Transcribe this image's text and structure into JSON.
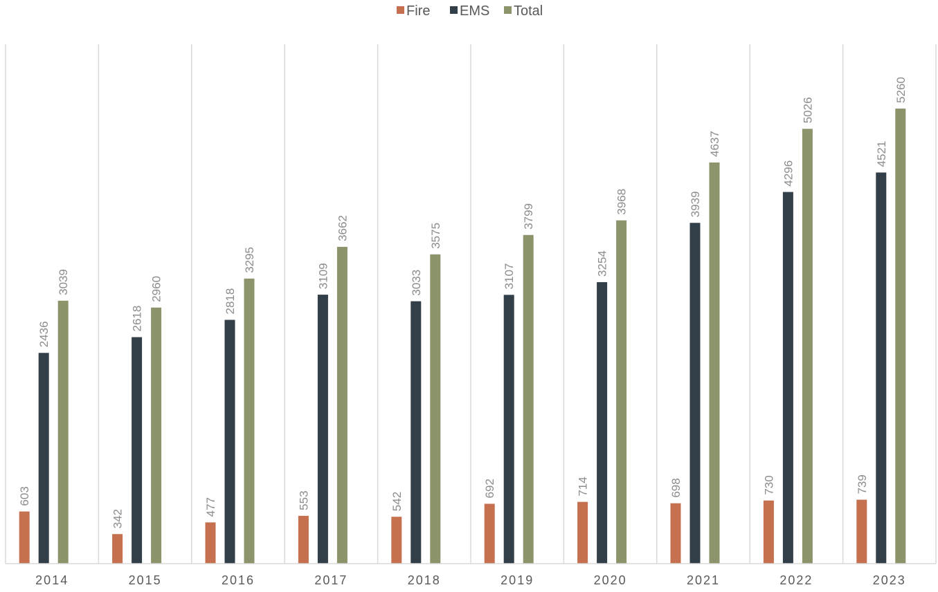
{
  "chart_data": {
    "type": "bar",
    "title": "",
    "xlabel": "",
    "ylabel": "",
    "categories": [
      "2014",
      "2015",
      "2016",
      "2017",
      "2018",
      "2019",
      "2020",
      "2021",
      "2022",
      "2023"
    ],
    "series": [
      {
        "name": "Fire",
        "color": "#c5714f",
        "values": [
          603,
          342,
          477,
          553,
          542,
          692,
          714,
          698,
          730,
          739
        ]
      },
      {
        "name": "EMS",
        "color": "#333f48",
        "values": [
          2436,
          2618,
          2818,
          3109,
          3033,
          3107,
          3254,
          3939,
          4296,
          4521
        ]
      },
      {
        "name": "Total",
        "color": "#8c946b",
        "values": [
          3039,
          2960,
          3295,
          3662,
          3575,
          3799,
          3968,
          4637,
          5026,
          5260
        ]
      }
    ],
    "ylim": [
      0,
      6000
    ],
    "grid": "vertical category separators",
    "legend_position": "top-center",
    "data_labels": "rotated, above bars"
  }
}
